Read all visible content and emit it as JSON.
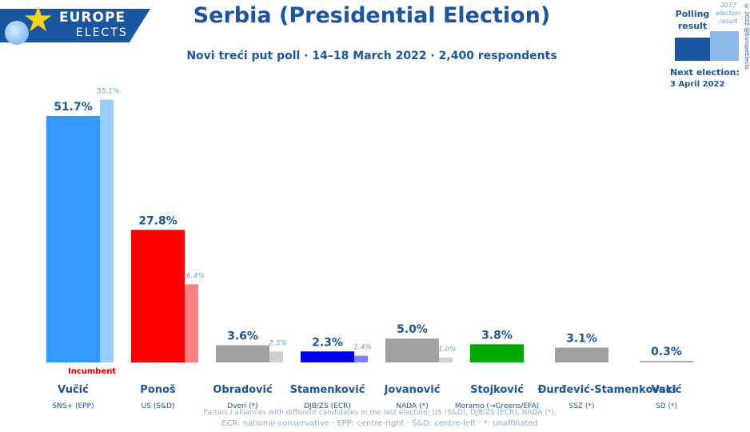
{
  "logo": {
    "line1": "EUROPE",
    "line2": "ELECTS"
  },
  "title": "Serbia (Presidential Election)",
  "subtitle": "Novi treći put poll · 14–18 March 2022 · 2,400 respondents",
  "legend": {
    "poll_label": "Polling result",
    "prev_label": "2017 election result"
  },
  "copyright": "© 2022 @EuropeElects",
  "next_election": {
    "label": "Next election:",
    "date": "3 April 2022"
  },
  "incumbent_label": "Incumbent",
  "note": "Parties / alliances with different candidates in the last election: US (S&D), DJB/ZS (ECR), NADA (*).",
  "footnote": "ECR: national-conservative · EPP: centre-right · S&D: centre-left · *: unaffiliated",
  "chart_data": {
    "type": "bar",
    "categories": [
      "Vučić",
      "Ponoš",
      "Obradović",
      "Stamenković",
      "Jovanović",
      "Stojković",
      "Đurđević-Stamenkovski",
      "Vacić"
    ],
    "parties": [
      "SNS+ (EPP)",
      "US (S&D)",
      "Dveri (*)",
      "DJB/ZS (ECR)",
      "NADA (*)",
      "Moramo (→Greens/EFA)",
      "SSZ (*)",
      "SD (*)"
    ],
    "series": [
      {
        "name": "Polling result",
        "values": [
          51.7,
          27.8,
          3.6,
          2.3,
          5.0,
          3.8,
          3.1,
          0.3
        ],
        "labels": [
          "51.7%",
          "27.8%",
          "3.6%",
          "2.3%",
          "5.0%",
          "3.8%",
          "3.1%",
          "0.3%"
        ]
      },
      {
        "name": "2017 election result",
        "values": [
          55.1,
          16.4,
          2.3,
          1.4,
          1.0,
          null,
          null,
          null
        ],
        "labels": [
          "55.1%",
          "16.4%",
          "2.3%",
          "1.4%",
          "1.0%",
          "",
          "",
          ""
        ]
      }
    ],
    "colors": [
      "#3399ff",
      "#ff0000",
      "#a0a0a0",
      "#0000ee",
      "#a0a0a0",
      "#00aa00",
      "#a0a0a0",
      "#a0a0a0"
    ],
    "prev_colors": [
      "#99ccff",
      "#ff8080",
      "#cfcfcf",
      "#7f7fff",
      "#cfcfcf",
      "",
      "",
      ""
    ],
    "ylim": [
      0,
      60
    ]
  }
}
